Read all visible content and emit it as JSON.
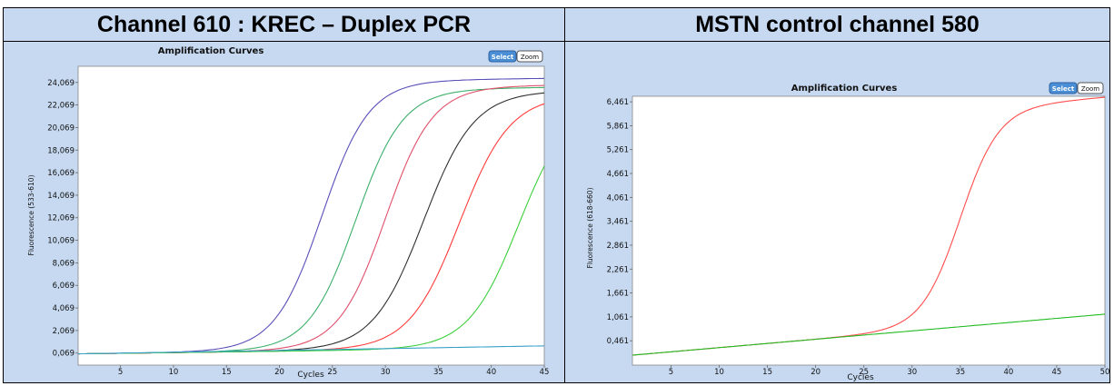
{
  "headers": {
    "left": "Channel 610 : KREC – Duplex PCR",
    "right": "MSTN control channel 580"
  },
  "buttons": {
    "select": "Select",
    "zoom": "Zoom"
  },
  "chart_data": [
    {
      "type": "line",
      "title": "Amplification Curves",
      "xlabel": "Cycles",
      "ylabel": "Fluorescence (533-610)",
      "xlim": [
        1,
        45
      ],
      "ylim": [
        -1000,
        25500
      ],
      "xticks": [
        5,
        10,
        15,
        20,
        25,
        30,
        35,
        40,
        45
      ],
      "yticks": [
        69,
        2069,
        4069,
        6069,
        8069,
        10069,
        12069,
        14069,
        16069,
        18069,
        20069,
        22069,
        24069
      ],
      "ytick_labels": [
        "0,069",
        "2,069",
        "4,069",
        "6,069",
        "8,069",
        "10,069",
        "12,069",
        "14,069",
        "16,069",
        "18,069",
        "20,069",
        "22,069",
        "24,069"
      ],
      "grid": false,
      "series": [
        {
          "color": "#5a4fb8",
          "model": {
            "base": 0,
            "slope": 12,
            "max": 23900,
            "mid": 24.0,
            "k": 0.45
          }
        },
        {
          "color": "#3caf6a",
          "model": {
            "base": 0,
            "slope": 12,
            "max": 23100,
            "mid": 27.2,
            "k": 0.45
          }
        },
        {
          "color": "#e0506a",
          "model": {
            "base": 0,
            "slope": 12,
            "max": 23300,
            "mid": 30.0,
            "k": 0.45
          }
        },
        {
          "color": "#303030",
          "model": {
            "base": 0,
            "slope": 12,
            "max": 22800,
            "mid": 33.6,
            "k": 0.42
          }
        },
        {
          "color": "#ff3b3b",
          "model": {
            "base": 0,
            "slope": 12,
            "max": 22400,
            "mid": 37.0,
            "k": 0.42
          }
        },
        {
          "color": "#3ccf3c",
          "model": {
            "base": 0,
            "slope": 12,
            "max": 22000,
            "mid": 42.6,
            "k": 0.42
          }
        },
        {
          "color": "#3aa0c8",
          "model": {
            "base": 0,
            "slope": 16,
            "max": 0,
            "mid": 50,
            "k": 0.4
          }
        }
      ]
    },
    {
      "type": "line",
      "title": "Amplification Curves",
      "xlabel": "Cycles",
      "ylabel": "Fluorescence (618-660)",
      "xlim": [
        1,
        50
      ],
      "ylim": [
        -0.15,
        6.6
      ],
      "xticks": [
        5,
        10,
        15,
        20,
        25,
        30,
        35,
        40,
        45,
        50
      ],
      "yticks": [
        0.461,
        1.061,
        1.661,
        2.261,
        2.861,
        3.461,
        4.061,
        4.661,
        5.261,
        5.861,
        6.461
      ],
      "ytick_labels": [
        "0,461",
        "1,061",
        "1,661",
        "2,261",
        "2,861",
        "3,461",
        "4,061",
        "4,661",
        "5,261",
        "5,861",
        "6,461"
      ],
      "grid": false,
      "series": [
        {
          "color": "#ff4d4d",
          "model": {
            "base": 0.1,
            "slope": 0.021,
            "max": 5.45,
            "mid": 35.0,
            "k": 0.5
          }
        },
        {
          "color": "#22bb22",
          "model": {
            "base": 0.1,
            "slope": 0.021,
            "max": 0,
            "mid": 50,
            "k": 0.5
          }
        }
      ]
    }
  ]
}
